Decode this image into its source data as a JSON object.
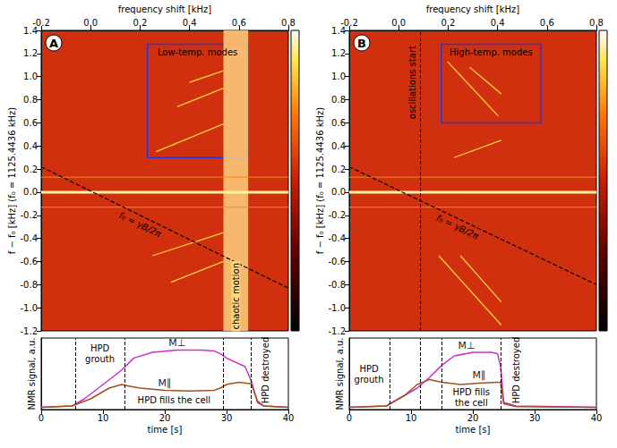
{
  "chart_data": [
    {
      "type": "spectrogram",
      "label": "A",
      "ylabel": "f − f₀ [kHz] (f₀ = 1125.4436 kHz)",
      "xlim": [
        0,
        40
      ],
      "ylim": [
        -1.2,
        1.4
      ],
      "yticks": [
        -1.2,
        {
          "value": -1,
          "label": "-1.0"
        },
        -0.8,
        -0.6,
        -0.4,
        -0.2,
        {
          "value": 0,
          "label": "0.0"
        },
        0.2,
        0.4,
        0.6,
        0.8,
        {
          "value": 1,
          "label": "1.0"
        },
        1.2,
        1.4
      ],
      "top_axis": {
        "label": "frequency shift [kHz]",
        "lim": [
          -0.2,
          0.8
        ],
        "ticks": [
          -0.2,
          {
            "value": 0,
            "label": "0.0"
          },
          0.2,
          0.4,
          0.6,
          0.8
        ]
      },
      "grid": false,
      "color": "#ffd23c",
      "reference_lines": [
        0,
        0.13,
        -0.13
      ],
      "series": [
        {
          "x": [
            18.6,
            29.5
          ],
          "values": [
            0.35,
            0.59
          ]
        },
        {
          "x": [
            22,
            29.5
          ],
          "values": [
            0.74,
            0.9
          ]
        },
        {
          "x": [
            24,
            29.5
          ],
          "values": [
            0.95,
            1.05
          ]
        },
        {
          "x": [
            18,
            29.5
          ],
          "values": [
            -0.55,
            -0.35
          ]
        },
        {
          "x": [
            21,
            29.5
          ],
          "values": [
            -0.78,
            -0.6
          ]
        }
      ],
      "dashed_line": {
        "label": "f₀ = γB/2π",
        "x": [
          0,
          40
        ],
        "values": [
          0.22,
          -0.83
        ],
        "label_at": [
          16,
          -0.28
        ]
      },
      "boxes": [
        {
          "label": "Low-temp. modes",
          "x": [
            17.2,
            33.4
          ],
          "y": [
            0.3,
            1.28
          ]
        }
      ],
      "bands": [
        {
          "label": "chaotic motion",
          "x": [
            29.5,
            33.5
          ],
          "label_at": [
            31.5,
            -0.9
          ]
        }
      ],
      "markers": []
    },
    {
      "type": "line",
      "xlabel": "time [s]",
      "ylabel": "NMR signal, a.u.",
      "xlim": [
        0,
        40
      ],
      "xticks": [
        0,
        10,
        20,
        30,
        40
      ],
      "ylim": [
        0,
        1
      ],
      "tick_labels": "x",
      "grid": false,
      "series": [
        {
          "name": "M⊥",
          "color": "#cc2fcc",
          "label_at": [
            22,
            0.93
          ],
          "x": [
            0,
            5,
            7,
            10,
            13,
            15,
            18,
            22,
            26,
            28,
            29,
            30,
            33,
            34,
            35,
            36,
            40
          ],
          "values": [
            0.03,
            0.05,
            0.15,
            0.35,
            0.55,
            0.72,
            0.8,
            0.83,
            0.83,
            0.82,
            0.78,
            0.72,
            0.6,
            0.4,
            0.1,
            0.05,
            0.03
          ]
        },
        {
          "name": "M∥",
          "color": "#a0521e",
          "label_at": [
            20,
            0.37
          ],
          "x": [
            0,
            5,
            8,
            11,
            13,
            14,
            16,
            20,
            24,
            28,
            29,
            30,
            32,
            34,
            35,
            36,
            40
          ],
          "values": [
            0.03,
            0.05,
            0.15,
            0.3,
            0.35,
            0.33,
            0.3,
            0.27,
            0.26,
            0.27,
            0.3,
            0.35,
            0.38,
            0.36,
            0.12,
            0.05,
            0.03
          ]
        }
      ],
      "vlines": [
        5.5,
        13.5,
        29.5,
        34
      ],
      "annotations": [
        {
          "text": "HPD grouth",
          "x": 9.5,
          "y": 0.78
        },
        {
          "text": "HPD fills the cell",
          "x": 21.5,
          "y": 0.13
        },
        {
          "text": "HPD destroyed",
          "x": 36.3,
          "y": 0.55,
          "orientation": "vertical"
        }
      ]
    },
    {
      "type": "spectrogram",
      "label": "B",
      "ylabel": "f − f₀ [kHz] (f₀ = 1125.4436 kHz)",
      "xlim": [
        0,
        40
      ],
      "ylim": [
        -1.2,
        1.4
      ],
      "yticks": [
        -1.2,
        {
          "value": -1,
          "label": "-1.0"
        },
        -0.8,
        -0.6,
        -0.4,
        -0.2,
        {
          "value": 0,
          "label": "0.0"
        },
        0.2,
        0.4,
        0.6,
        0.8,
        {
          "value": 1,
          "label": "1.0"
        },
        1.2,
        1.4
      ],
      "top_axis": {
        "label": "frequency shift [kHz]",
        "lim": [
          -0.2,
          0.8
        ],
        "ticks": [
          -0.2,
          {
            "value": 0,
            "label": "0.0"
          },
          0.2,
          0.4,
          0.6,
          0.8
        ]
      },
      "grid": false,
      "color": "#ffd23c",
      "reference_lines": [
        0,
        0.13,
        -0.13
      ],
      "series": [
        {
          "x": [
            15.9,
            24.1
          ],
          "values": [
            1.13,
            0.66
          ]
        },
        {
          "x": [
            19.5,
            24.6
          ],
          "values": [
            1.08,
            0.85
          ]
        },
        {
          "x": [
            17,
            24.6
          ],
          "values": [
            0.3,
            0.45
          ]
        },
        {
          "x": [
            14.5,
            24.6
          ],
          "values": [
            -0.55,
            -1.15
          ]
        },
        {
          "x": [
            18,
            24.6
          ],
          "values": [
            -0.55,
            -0.95
          ]
        }
      ],
      "dashed_line": {
        "label": "f₀ = γB/2π",
        "x": [
          0,
          40
        ],
        "values": [
          0.22,
          -0.8
        ],
        "label_at": [
          17.5,
          -0.3
        ]
      },
      "boxes": [
        {
          "label": "High-temp. modes",
          "x": [
            14.9,
            31
          ],
          "y": [
            0.6,
            1.28
          ]
        }
      ],
      "bands": [],
      "markers": [
        {
          "label": "oscillations start",
          "x": 11.5,
          "label_at": [
            10.2,
            0.95
          ]
        }
      ]
    },
    {
      "type": "line",
      "xlabel": "time [s]",
      "ylabel": "NMR signal, a.u.",
      "xlim": [
        0,
        40
      ],
      "xticks": [
        0,
        10,
        20,
        30,
        40
      ],
      "ylim": [
        0,
        1
      ],
      "tick_labels": "x",
      "grid": false,
      "series": [
        {
          "name": "M⊥",
          "color": "#cc2fcc",
          "label_at": [
            19,
            0.9
          ],
          "x": [
            0,
            6,
            8,
            11,
            13,
            15,
            17,
            20,
            23,
            24,
            24.5,
            25,
            27,
            40
          ],
          "values": [
            0.03,
            0.05,
            0.15,
            0.3,
            0.45,
            0.62,
            0.75,
            0.8,
            0.8,
            0.78,
            0.6,
            0.1,
            0.05,
            0.03
          ]
        },
        {
          "name": "M∥",
          "color": "#a0521e",
          "label_at": [
            21,
            0.48
          ],
          "x": [
            0,
            6,
            9,
            11,
            13,
            15,
            18,
            21,
            24,
            24.5,
            25,
            27,
            40
          ],
          "values": [
            0.03,
            0.05,
            0.2,
            0.35,
            0.42,
            0.38,
            0.35,
            0.37,
            0.38,
            0.38,
            0.08,
            0.04,
            0.03
          ]
        }
      ],
      "vlines": [
        6.5,
        11.5,
        15,
        24.5
      ],
      "annotations": [
        {
          "text": "HPD grouth",
          "x": 3.2,
          "y": 0.5
        },
        {
          "text": "HPD fills the cell",
          "x": 19.75,
          "y": 0.17
        },
        {
          "text": "HPD destroyed",
          "x": 27,
          "y": 0.55,
          "orientation": "vertical"
        }
      ]
    }
  ]
}
